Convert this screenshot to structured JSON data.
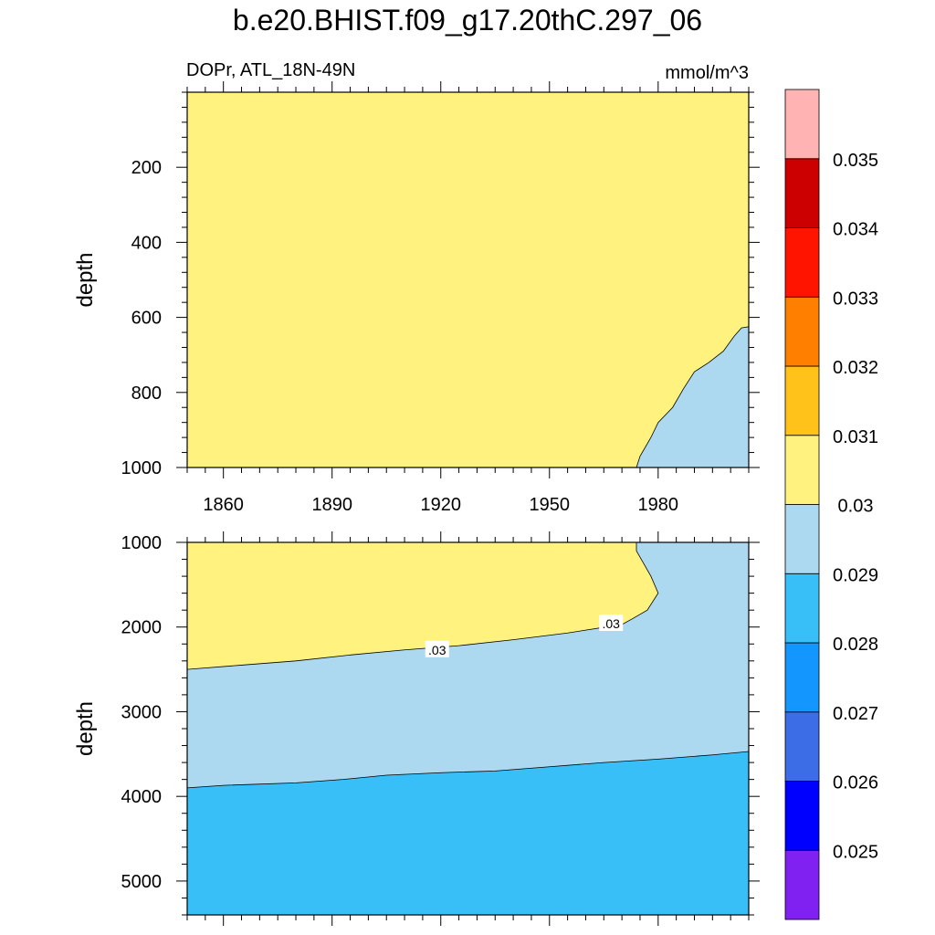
{
  "title": "b.e20.BHIST.f09_g17.20thC.297_06",
  "left_subtitle": "DOPr, ATL_18N-49N",
  "right_subtitle": "mmol/m^3",
  "chart_data": {
    "type": "contour",
    "x_ticks": [
      "1860",
      "1890",
      "1920",
      "1950",
      "1980"
    ],
    "x_tick_values": [
      1860,
      1890,
      1920,
      1950,
      1980
    ],
    "xlim": [
      1850,
      2005
    ],
    "panels": [
      {
        "ylabel": "depth",
        "ylim": [
          0,
          1000
        ],
        "y_ticks": [
          "200",
          "400",
          "600",
          "800",
          "1000"
        ],
        "y_tick_values": [
          200,
          400,
          600,
          800,
          1000
        ],
        "regions": [
          {
            "level": "0.03-0.031",
            "color": "#FFF27F"
          },
          {
            "level": "0.029-0.03",
            "color": "#ADD9F0",
            "boundary": [
              [
                1974,
                1000
              ],
              [
                1975,
                970
              ],
              [
                1978,
                920
              ],
              [
                1980,
                880
              ],
              [
                1984,
                840
              ],
              [
                1987,
                790
              ],
              [
                1990,
                745
              ],
              [
                1994,
                720
              ],
              [
                1998,
                690
              ],
              [
                2001,
                650
              ],
              [
                2003,
                628
              ],
              [
                2005,
                625
              ]
            ]
          }
        ],
        "contour_labels": []
      },
      {
        "ylabel": "depth",
        "ylim": [
          1000,
          5400
        ],
        "y_ticks": [
          "1000",
          "2000",
          "3000",
          "4000",
          "5000"
        ],
        "y_tick_values": [
          1000,
          2000,
          3000,
          4000,
          5000
        ],
        "regions": [
          {
            "level": "0.03-0.031",
            "color": "#FFF27F",
            "boundary": [
              [
                1850,
                2500
              ],
              [
                1865,
                2450
              ],
              [
                1880,
                2400
              ],
              [
                1895,
                2330
              ],
              [
                1910,
                2270
              ],
              [
                1925,
                2220
              ],
              [
                1940,
                2150
              ],
              [
                1955,
                2070
              ],
              [
                1970,
                1970
              ],
              [
                1973,
                1900
              ],
              [
                1977,
                1800
              ],
              [
                1980,
                1600
              ],
              [
                1978,
                1400
              ],
              [
                1976,
                1250
              ],
              [
                1974,
                1100
              ],
              [
                1974,
                1000
              ]
            ]
          },
          {
            "level": "0.029-0.03",
            "color": "#ADD9F0"
          },
          {
            "level": "0.028-0.029",
            "color": "#38BFF7",
            "boundary": [
              [
                1850,
                3900
              ],
              [
                1860,
                3870
              ],
              [
                1880,
                3840
              ],
              [
                1893,
                3800
              ],
              [
                1905,
                3750
              ],
              [
                1920,
                3720
              ],
              [
                1935,
                3700
              ],
              [
                1950,
                3650
              ],
              [
                1965,
                3600
              ],
              [
                1980,
                3560
              ],
              [
                1995,
                3510
              ],
              [
                2005,
                3470
              ]
            ]
          }
        ],
        "contour_labels": [
          {
            "text": ".03",
            "x": 1919,
            "y": 2270
          },
          {
            "text": ".03",
            "x": 1967,
            "y": 1960
          }
        ]
      }
    ],
    "colorbar": {
      "levels": [
        "0.025",
        "0.026",
        "0.027",
        "0.028",
        "0.029",
        "0.03",
        "0.031",
        "0.032",
        "0.033",
        "0.034",
        "0.035"
      ],
      "colors": [
        "#8021F2",
        "#0000FF",
        "#3C6CE6",
        "#1496FF",
        "#38BFF7",
        "#ADD9F0",
        "#FFF27F",
        "#FFC21A",
        "#FF7F00",
        "#FF1400",
        "#CC0000",
        "#FFB3B3"
      ]
    }
  }
}
